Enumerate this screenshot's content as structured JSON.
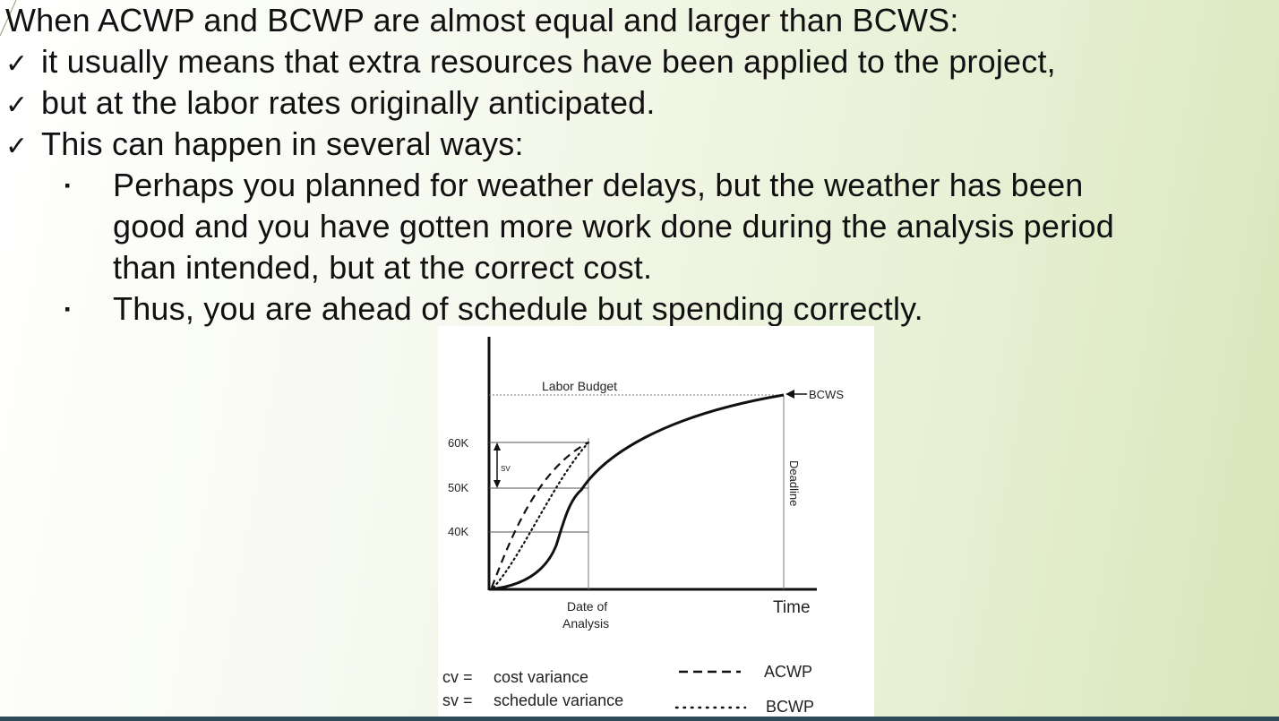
{
  "slide": {
    "heading": "When ACWP and BCWP are almost equal and larger than BCWS:",
    "check_items": [
      "it usually means that extra resources have been applied to the project,",
      "but at the labor rates originally anticipated.",
      "This can happen in several ways:"
    ],
    "sub_bullets": [
      [
        "Perhaps you planned for weather delays, but the weather has been",
        "good and you have gotten more work done during the analysis period",
        "than intended, but at the correct cost."
      ],
      [
        "Thus, you are ahead of schedule but spending correctly."
      ]
    ],
    "check_glyph": "✓",
    "bullet_glyph": "▪"
  },
  "figure": {
    "labor_budget": "Labor Budget",
    "bcws_label": "BCWS",
    "deadline_label": "Deadline",
    "sv_label": "SV",
    "y_ticks": [
      "60K",
      "50K",
      "40K"
    ],
    "x_date_line1": "Date of",
    "x_date_line2": "Analysis",
    "x_time": "Time",
    "legend": [
      {
        "abbr": "cv =",
        "text": "cost variance",
        "line": "dashed",
        "series": "ACWP"
      },
      {
        "abbr": "sv =",
        "text": "schedule variance",
        "line": "dotted",
        "series": "BCWP"
      }
    ]
  }
}
